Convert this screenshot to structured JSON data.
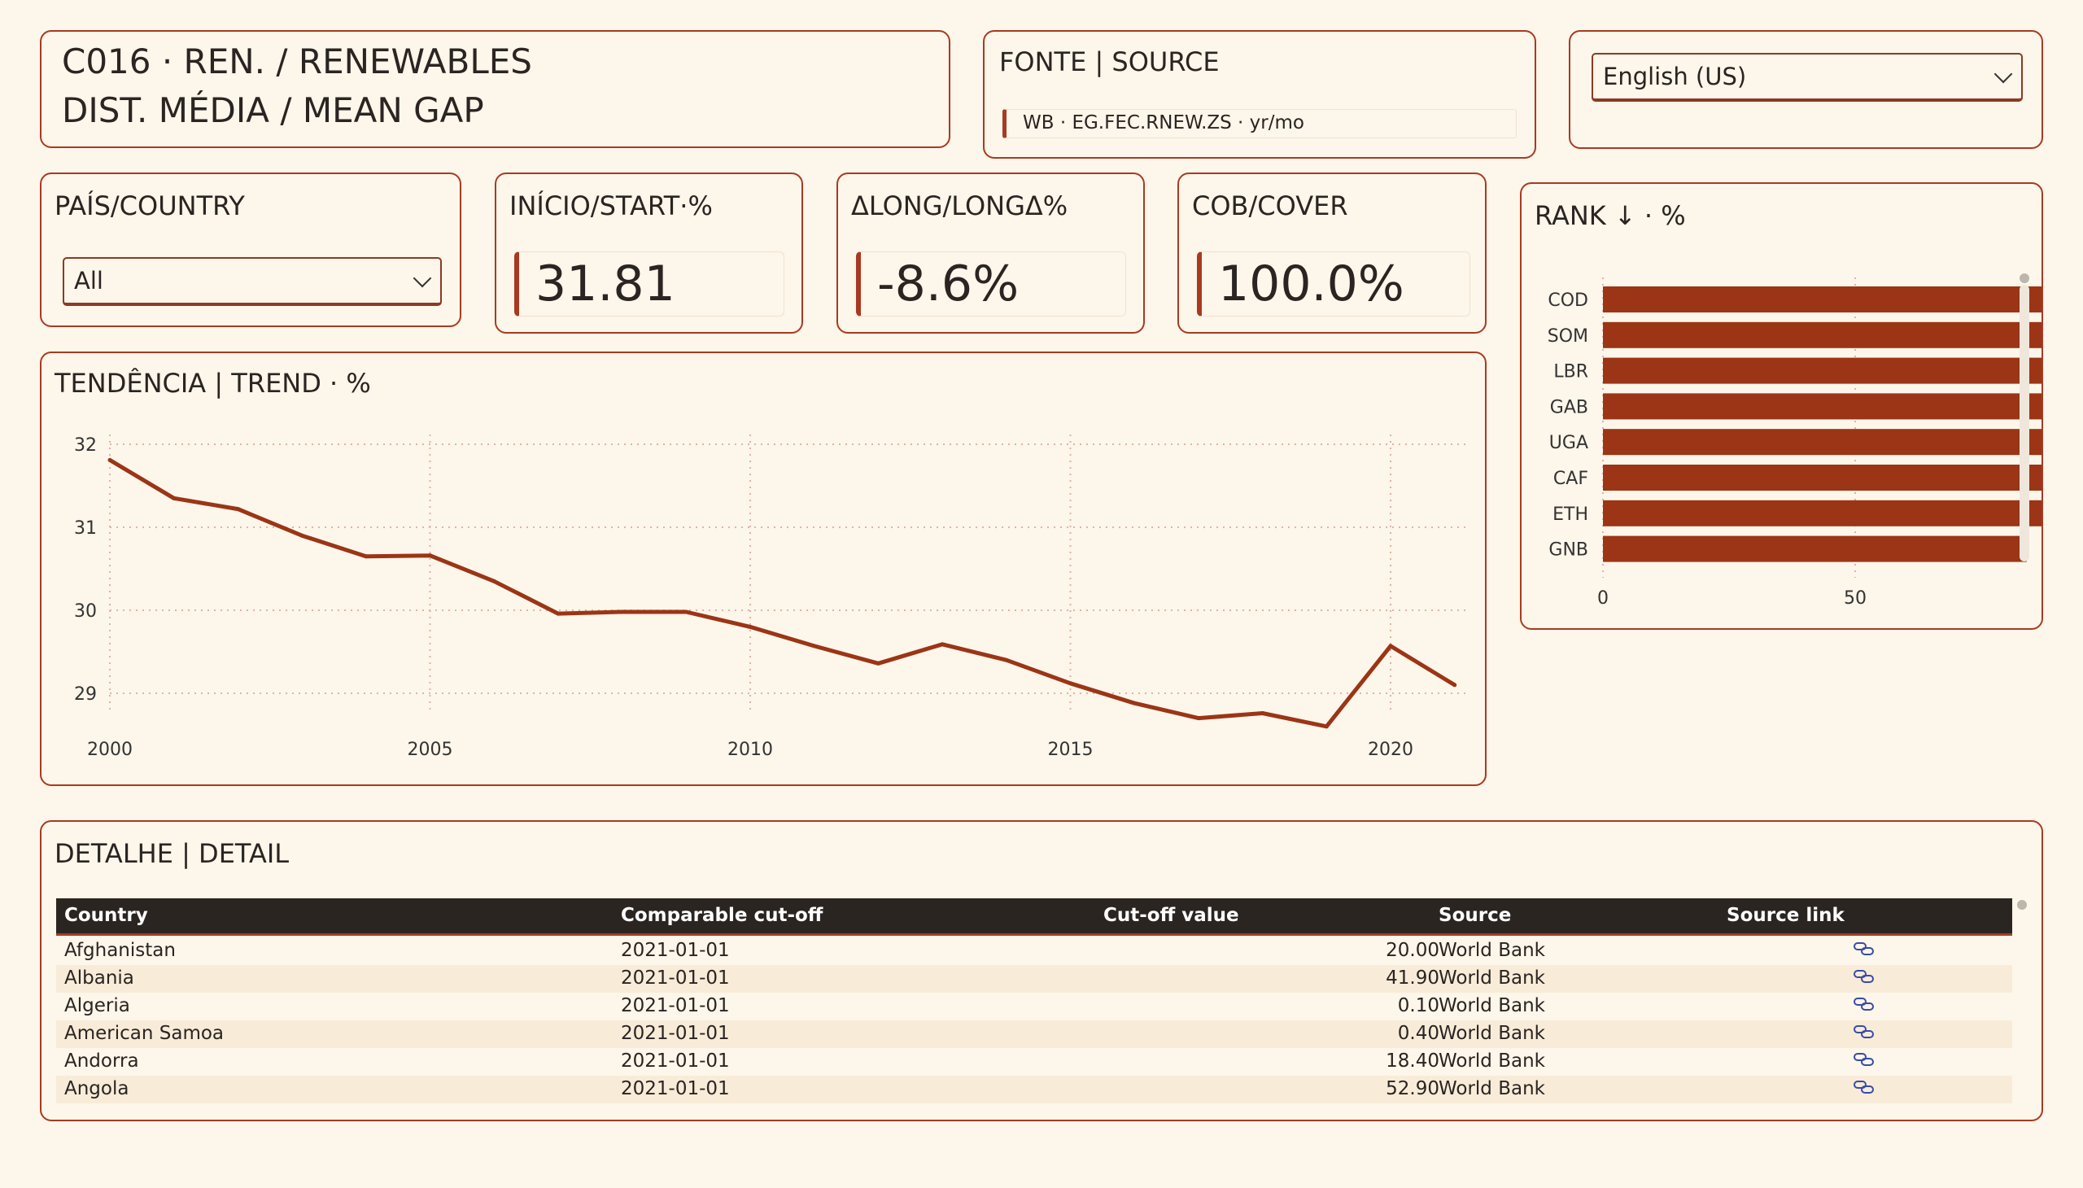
{
  "title": {
    "line1": "C016 · REN. / RENEWABLES",
    "line2": "DIST. MÉDIA / MEAN GAP"
  },
  "source": {
    "label": "FONTE | SOURCE",
    "value": "WB · EG.FEC.RNEW.ZS · yr/mo"
  },
  "language": {
    "selected": "English (US)"
  },
  "country_filter": {
    "label": "PAÍS/COUNTRY",
    "selected": "All"
  },
  "kpis": [
    {
      "label": "INÍCIO/START·%",
      "value": "31.81"
    },
    {
      "label": "ΔLONG/LONGΔ%",
      "value": "-8.6%"
    },
    {
      "label": "COB/COVER",
      "value": "100.0%"
    }
  ],
  "trend": {
    "title": "TENDÊNCIA | TREND · %"
  },
  "rank": {
    "title": "RANK ↓ · %"
  },
  "detail": {
    "title": "DETALHE | DETAIL",
    "columns": [
      "Country",
      "Comparable cut-off",
      "Cut-off value",
      "Source",
      "Source link"
    ],
    "rows": [
      {
        "country": "Afghanistan",
        "cutoff": "2021-01-01",
        "value": "20.00",
        "source": "World Bank"
      },
      {
        "country": "Albania",
        "cutoff": "2021-01-01",
        "value": "41.90",
        "source": "World Bank"
      },
      {
        "country": "Algeria",
        "cutoff": "2021-01-01",
        "value": "0.10",
        "source": "World Bank"
      },
      {
        "country": "American Samoa",
        "cutoff": "2021-01-01",
        "value": "0.40",
        "source": "World Bank"
      },
      {
        "country": "Andorra",
        "cutoff": "2021-01-01",
        "value": "18.40",
        "source": "World Bank"
      },
      {
        "country": "Angola",
        "cutoff": "2021-01-01",
        "value": "52.90",
        "source": "World Bank"
      }
    ]
  },
  "colors": {
    "accent": "#a83a22",
    "bar": "#9b3516",
    "header_bg": "#2b2522",
    "page_bg": "#fdf6ea",
    "link": "#3a4aa8"
  },
  "chart_data": [
    {
      "type": "line",
      "title": "TENDÊNCIA | TREND · %",
      "x": [
        2000,
        2001,
        2002,
        2003,
        2004,
        2005,
        2006,
        2007,
        2008,
        2009,
        2010,
        2011,
        2012,
        2013,
        2014,
        2015,
        2016,
        2017,
        2018,
        2019,
        2020,
        2021
      ],
      "series": [
        {
          "values": [
            31.81,
            31.35,
            31.22,
            30.9,
            30.65,
            30.66,
            30.35,
            29.96,
            29.98,
            29.98,
            29.8,
            29.57,
            29.36,
            29.59,
            29.4,
            29.12,
            28.88,
            28.7,
            28.76,
            28.6,
            29.57,
            29.1
          ]
        }
      ],
      "x_ticks": [
        2000,
        2005,
        2010,
        2015,
        2020
      ],
      "y_ticks": [
        29,
        30,
        31,
        32
      ],
      "xlim": [
        2000,
        2021
      ],
      "ylim": [
        28.4,
        32.2
      ],
      "grid": true
    },
    {
      "type": "bar",
      "orientation": "horizontal",
      "title": "RANK ↓ · %",
      "categories": [
        "COD",
        "SOM",
        "LBR",
        "GAB",
        "UGA",
        "CAF",
        "ETH",
        "GNB"
      ],
      "values": [
        96.5,
        95.3,
        92.2,
        89.5,
        89.2,
        89.0,
        88.6,
        84.0
      ],
      "x_ticks": [
        0,
        50
      ],
      "xlim": [
        0,
        100
      ]
    }
  ]
}
